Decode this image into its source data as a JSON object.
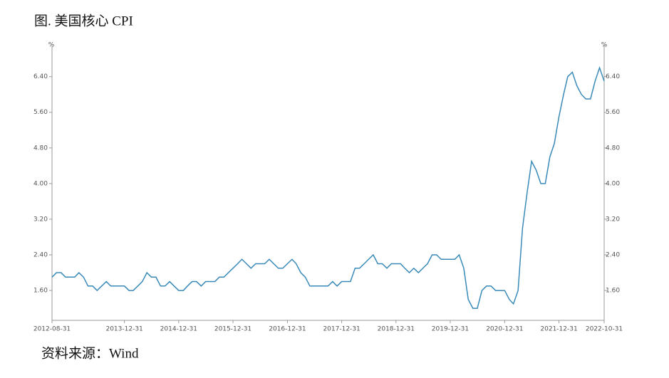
{
  "chart_data": {
    "type": "line",
    "title": "图. 美国核心 CPI",
    "source": "资料来源：Wind",
    "y_axis_label": "%",
    "y2_axis_label": "%",
    "x": [
      "2012-08-31",
      "2012-09-30",
      "2012-10-31",
      "2012-11-30",
      "2012-12-31",
      "2013-01-31",
      "2013-02-28",
      "2013-03-31",
      "2013-04-30",
      "2013-05-31",
      "2013-06-30",
      "2013-07-31",
      "2013-08-31",
      "2013-09-30",
      "2013-10-31",
      "2013-11-30",
      "2013-12-31",
      "2014-01-31",
      "2014-02-28",
      "2014-03-31",
      "2014-04-30",
      "2014-05-31",
      "2014-06-30",
      "2014-07-31",
      "2014-08-31",
      "2014-09-30",
      "2014-10-31",
      "2014-11-30",
      "2014-12-31",
      "2015-01-31",
      "2015-02-28",
      "2015-03-31",
      "2015-04-30",
      "2015-05-31",
      "2015-06-30",
      "2015-07-31",
      "2015-08-31",
      "2015-09-30",
      "2015-10-31",
      "2015-11-30",
      "2015-12-31",
      "2016-01-31",
      "2016-02-29",
      "2016-03-31",
      "2016-04-30",
      "2016-05-31",
      "2016-06-30",
      "2016-07-31",
      "2016-08-31",
      "2016-09-30",
      "2016-10-31",
      "2016-11-30",
      "2016-12-31",
      "2017-01-31",
      "2017-02-28",
      "2017-03-31",
      "2017-04-30",
      "2017-05-31",
      "2017-06-30",
      "2017-07-31",
      "2017-08-31",
      "2017-09-30",
      "2017-10-31",
      "2017-11-30",
      "2017-12-31",
      "2018-01-31",
      "2018-02-28",
      "2018-03-31",
      "2018-04-30",
      "2018-05-31",
      "2018-06-30",
      "2018-07-31",
      "2018-08-31",
      "2018-09-30",
      "2018-10-31",
      "2018-11-30",
      "2018-12-31",
      "2019-01-31",
      "2019-02-28",
      "2019-03-31",
      "2019-04-30",
      "2019-05-31",
      "2019-06-30",
      "2019-07-31",
      "2019-08-31",
      "2019-09-30",
      "2019-10-31",
      "2019-11-30",
      "2019-12-31",
      "2020-01-31",
      "2020-02-29",
      "2020-03-31",
      "2020-04-30",
      "2020-05-31",
      "2020-06-30",
      "2020-07-31",
      "2020-08-31",
      "2020-09-30",
      "2020-10-31",
      "2020-11-30",
      "2020-12-31",
      "2021-01-31",
      "2021-02-28",
      "2021-03-31",
      "2021-04-30",
      "2021-05-31",
      "2021-06-30",
      "2021-07-31",
      "2021-08-31",
      "2021-09-30",
      "2021-10-31",
      "2021-11-30",
      "2021-12-31",
      "2022-01-31",
      "2022-02-28",
      "2022-03-31",
      "2022-04-30",
      "2022-05-31",
      "2022-06-30",
      "2022-07-31",
      "2022-08-31",
      "2022-09-30",
      "2022-10-31"
    ],
    "series": [
      {
        "name": "美国核心CPI",
        "color": "#3a8ab8",
        "values": [
          1.9,
          2.0,
          2.0,
          1.9,
          1.9,
          1.9,
          2.0,
          1.9,
          1.7,
          1.7,
          1.6,
          1.7,
          1.8,
          1.7,
          1.7,
          1.7,
          1.7,
          1.6,
          1.6,
          1.7,
          1.8,
          2.0,
          1.9,
          1.9,
          1.7,
          1.7,
          1.8,
          1.7,
          1.6,
          1.6,
          1.7,
          1.8,
          1.8,
          1.7,
          1.8,
          1.8,
          1.8,
          1.9,
          1.9,
          2.0,
          2.1,
          2.2,
          2.3,
          2.2,
          2.1,
          2.2,
          2.2,
          2.2,
          2.3,
          2.2,
          2.1,
          2.1,
          2.2,
          2.3,
          2.2,
          2.0,
          1.9,
          1.7,
          1.7,
          1.7,
          1.7,
          1.7,
          1.8,
          1.7,
          1.8,
          1.8,
          1.8,
          2.1,
          2.1,
          2.2,
          2.3,
          2.4,
          2.2,
          2.2,
          2.1,
          2.2,
          2.2,
          2.2,
          2.1,
          2.0,
          2.1,
          2.0,
          2.1,
          2.2,
          2.4,
          2.4,
          2.3,
          2.3,
          2.3,
          2.3,
          2.4,
          2.1,
          1.4,
          1.2,
          1.2,
          1.6,
          1.7,
          1.7,
          1.6,
          1.6,
          1.6,
          1.4,
          1.3,
          1.6,
          3.0,
          3.8,
          4.5,
          4.3,
          4.0,
          4.0,
          4.6,
          4.9,
          5.5,
          6.0,
          6.4,
          6.5,
          6.2,
          6.0,
          5.9,
          5.9,
          6.3,
          6.6,
          6.3
        ]
      }
    ],
    "xlim": [
      "2012-08-31",
      "2022-10-31"
    ],
    "xticks": [
      "2012-08-31",
      "2013-12-31",
      "2014-12-31",
      "2015-12-31",
      "2016-12-31",
      "2017-12-31",
      "2018-12-31",
      "2019-12-31",
      "2020-12-31",
      "2021-12-31",
      "2022-10-31"
    ],
    "ylim": [
      0.93,
      7.13
    ],
    "yticks": [
      {
        "value": 1.6,
        "label": "1.60"
      },
      {
        "value": 2.4,
        "label": "2.40"
      },
      {
        "value": 3.2,
        "label": "3.20"
      },
      {
        "value": 4.0,
        "label": "4.00"
      },
      {
        "value": 4.8,
        "label": "4.80"
      },
      {
        "value": 5.6,
        "label": "5.60"
      },
      {
        "value": 6.4,
        "label": "6.40"
      }
    ],
    "y2lim": [
      0.93,
      7.13
    ],
    "y2ticks": [
      {
        "value": 1.6,
        "label": "1.60"
      },
      {
        "value": 2.4,
        "label": "2.40"
      },
      {
        "value": 3.2,
        "label": "3.20"
      },
      {
        "value": 4.0,
        "label": "4.00"
      },
      {
        "value": 4.8,
        "label": "4.80"
      },
      {
        "value": 5.6,
        "label": "5.60"
      },
      {
        "value": 6.4,
        "label": "6.40"
      }
    ]
  }
}
